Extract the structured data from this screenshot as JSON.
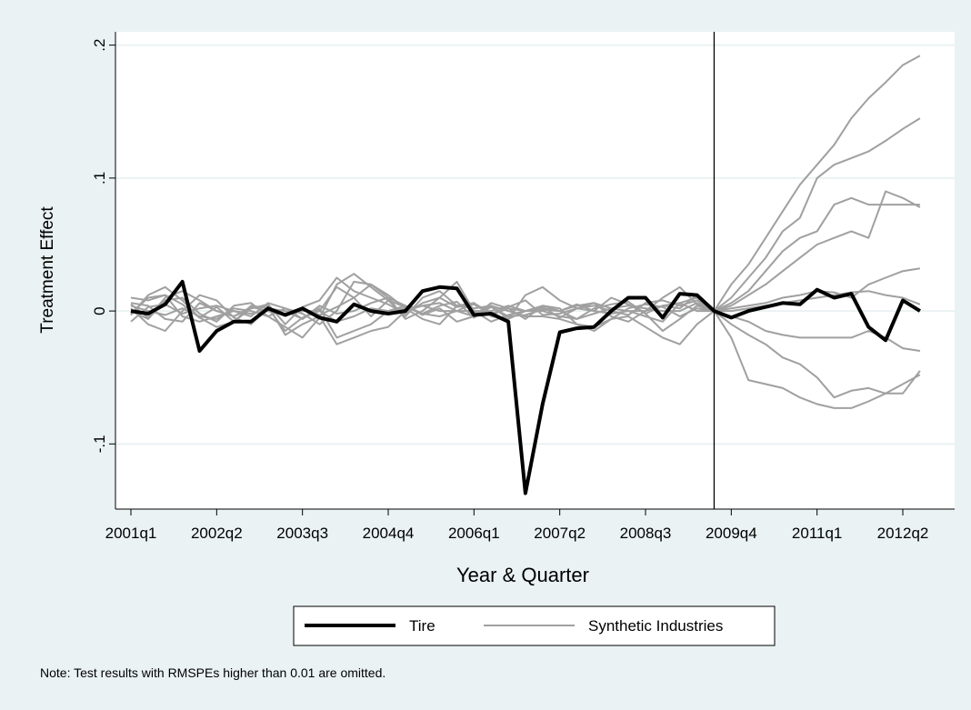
{
  "chart_data": {
    "type": "line",
    "x_label": "Year & Quarter",
    "y_label": "Treatment Effect",
    "note": "Note: Test results with RMSPEs higher than 0.01 are omitted.",
    "categories": [
      "2001q1",
      null,
      null,
      null,
      null,
      "2002q2",
      null,
      null,
      null,
      null,
      "2003q3",
      null,
      null,
      null,
      null,
      "2004q4",
      null,
      null,
      null,
      null,
      "2006q1",
      null,
      null,
      null,
      null,
      "2007q2",
      null,
      null,
      null,
      null,
      "2008q3",
      null,
      null,
      null,
      null,
      "2009q4",
      null,
      null,
      null,
      null,
      "2011q1",
      null,
      null,
      null,
      null,
      "2012q2",
      null
    ],
    "xline_index": 34,
    "ylim": [
      -0.149,
      0.21
    ],
    "yticks": [
      {
        "value": -0.1,
        "label": "-.1"
      },
      0,
      {
        "value": 0.1,
        "label": ".1"
      },
      {
        "value": 0.2,
        "label": ".2"
      }
    ],
    "grid": true,
    "series": [
      {
        "name": "Tire",
        "color": "#000000",
        "width": 4,
        "values": [
          0,
          -0.002,
          0.005,
          0.022,
          -0.03,
          -0.015,
          -0.008,
          -0.008,
          0.002,
          -0.003,
          0.002,
          -0.005,
          -0.008,
          0.005,
          0,
          -0.002,
          0,
          0.015,
          0.018,
          0.017,
          -0.003,
          -0.002,
          -0.008,
          -0.137,
          -0.07,
          -0.016,
          -0.013,
          -0.012,
          0,
          0.01,
          0.01,
          -0.005,
          0.013,
          0.012,
          0,
          -0.005,
          0,
          0.003,
          0.006,
          0.005,
          0.016,
          0.01,
          0.013,
          -0.012,
          -0.022,
          0.008,
          0
        ]
      },
      {
        "name": "Synthetic Industries",
        "color": "#a0a0a0",
        "width": 2,
        "values": [
          [
            0.01,
            0.008,
            0.012,
            0.005,
            -0.005,
            0.003,
            -0.008,
            0.002,
            0.005,
            -0.01,
            0.003,
            0.008,
            0.025,
            0.015,
            0.01,
            0.005,
            -0.002,
            0.006,
            0.01,
            0.003,
            0.005,
            -0.003,
            0.002,
            0,
            0.003,
            -0.005,
            0.002,
            0.004,
            0,
            -0.003,
            0.006,
            0.008,
            0.004,
            0.008,
            0,
            0.02,
            0.035,
            0.055,
            0.075,
            0.095,
            0.11,
            0.125,
            0.145,
            0.16,
            0.172,
            0.185,
            0.192
          ],
          [
            0.005,
            -0.005,
            0.01,
            0.015,
            0.008,
            0,
            -0.004,
            0.003,
            0,
            -0.002,
            0.002,
            -0.003,
            0.003,
            0.01,
            -0.004,
            0.008,
            0.003,
            -0.002,
            0.004,
            0.007,
            -0.005,
            0.003,
            -0.004,
            -0.003,
            0.001,
            0,
            -0.006,
            0.002,
            0.005,
            0.007,
            -0.002,
            0.004,
            0.002,
            0.012,
            0,
            0.01,
            0.025,
            0.04,
            0.06,
            0.07,
            0.1,
            0.11,
            0.115,
            0.12,
            0.128,
            0.137,
            0.145
          ],
          [
            -0.003,
            0.012,
            0.018,
            0.008,
            -0.005,
            -0.012,
            -0.008,
            0.004,
            0.002,
            0,
            -0.006,
            0.002,
            -0.02,
            -0.015,
            -0.01,
            0,
            0.004,
            -0.003,
            0.002,
            -0.008,
            -0.004,
            0.006,
            0.002,
            -0.006,
            0.004,
            0.002,
            -0.01,
            -0.012,
            -0.006,
            0.002,
            0.005,
            0.003,
            -0.004,
            0.002,
            0,
            0.006,
            0.015,
            0.03,
            0.045,
            0.055,
            0.06,
            0.08,
            0.085,
            0.08,
            0.08,
            0.08,
            0.08
          ],
          [
            0.002,
            -0.01,
            -0.015,
            0,
            0.012,
            0.008,
            -0.005,
            -0.01,
            0.002,
            -0.015,
            -0.005,
            0,
            0.018,
            0.01,
            0.02,
            0.012,
            0.002,
            -0.006,
            -0.01,
            0.004,
            0.006,
            -0.002,
            0.003,
            0.008,
            -0.003,
            -0.002,
            0.002,
            0.006,
            -0.004,
            -0.008,
            0,
            0.01,
            0.018,
            0.005,
            0,
            0.004,
            0.012,
            0.02,
            0.03,
            0.04,
            0.05,
            0.055,
            0.06,
            0.055,
            0.09,
            0.085,
            0.078
          ],
          [
            -0.008,
            0.003,
            0.005,
            -0.002,
            0.002,
            0.004,
            0,
            -0.004,
            0.006,
            0.002,
            -0.002,
            -0.01,
            0,
            0.022,
            0.02,
            0.01,
            -0.006,
            0,
            0.01,
            0.022,
            0,
            -0.008,
            -0.003,
            0,
            0.004,
            0,
            0.005,
            0,
            0.01,
            0.005,
            -0.002,
            -0.015,
            -0.006,
            0.004,
            0,
            0.002,
            0.004,
            0.006,
            0.01,
            0.012,
            0.015,
            0.014,
            0.01,
            0.02,
            0.025,
            0.03,
            0.032
          ],
          [
            0.004,
            0,
            -0.003,
            0.002,
            -0.004,
            -0.006,
            0.002,
            0,
            -0.004,
            -0.012,
            -0.02,
            -0.005,
            0.02,
            0.028,
            0.018,
            0.008,
            -0.004,
            0.01,
            0.015,
            0.004,
            0.002,
            0.004,
            -0.006,
            0.012,
            0.018,
            0.008,
            0.002,
            0,
            -0.002,
            0,
            -0.004,
            -0.008,
            0.006,
            0.01,
            0,
            0,
            0.002,
            0.004,
            0.006,
            0.008,
            0.01,
            0.012,
            0.014,
            0.015,
            0.012,
            0.01,
            0.005
          ],
          [
            0.006,
            0.004,
            -0.006,
            -0.008,
            0.006,
            0,
            -0.004,
            0.002,
            0.004,
            -0.018,
            -0.01,
            -0.004,
            -0.025,
            -0.02,
            -0.015,
            -0.012,
            0,
            0.004,
            0.006,
            0,
            -0.004,
            0.004,
            0,
            -0.004,
            -0.004,
            -0.006,
            -0.01,
            -0.015,
            -0.006,
            -0.004,
            -0.012,
            -0.02,
            -0.025,
            -0.01,
            0,
            -0.004,
            -0.008,
            -0.015,
            -0.018,
            -0.02,
            -0.02,
            -0.02,
            -0.02,
            -0.015,
            -0.02,
            -0.028,
            -0.03
          ],
          [
            -0.002,
            0.01,
            0.012,
            -0.004,
            -0.008,
            -0.004,
            0,
            -0.002,
            0,
            -0.003,
            0,
            0,
            -0.008,
            -0.004,
            0.002,
            0,
            0.002,
            0.004,
            0,
            0,
            0.006,
            -0.004,
            -0.006,
            0,
            0,
            -0.004,
            -0.006,
            -0.002,
            0.002,
            0.004,
            0.002,
            0,
            0,
            0.006,
            0,
            -0.01,
            -0.018,
            -0.025,
            -0.035,
            -0.04,
            -0.05,
            -0.065,
            -0.06,
            -0.058,
            -0.062,
            -0.055,
            -0.048
          ],
          [
            0,
            -0.006,
            0.008,
            0.01,
            -0.002,
            -0.008,
            0.004,
            0.006,
            -0.004,
            0.002,
            -0.006,
            0.004,
            -0.002,
            0,
            0.006,
            0.01,
            0.004,
            -0.002,
            -0.004,
            0,
            0,
            0,
            0.004,
            0,
            0.002,
            0,
            0.004,
            0.006,
            0.002,
            0,
            0,
            0.004,
            0.006,
            0,
            0,
            -0.02,
            -0.052,
            -0.055,
            -0.058,
            -0.065,
            -0.07,
            -0.073,
            -0.073,
            -0.068,
            -0.062,
            -0.062,
            -0.045
          ]
        ]
      }
    ]
  }
}
